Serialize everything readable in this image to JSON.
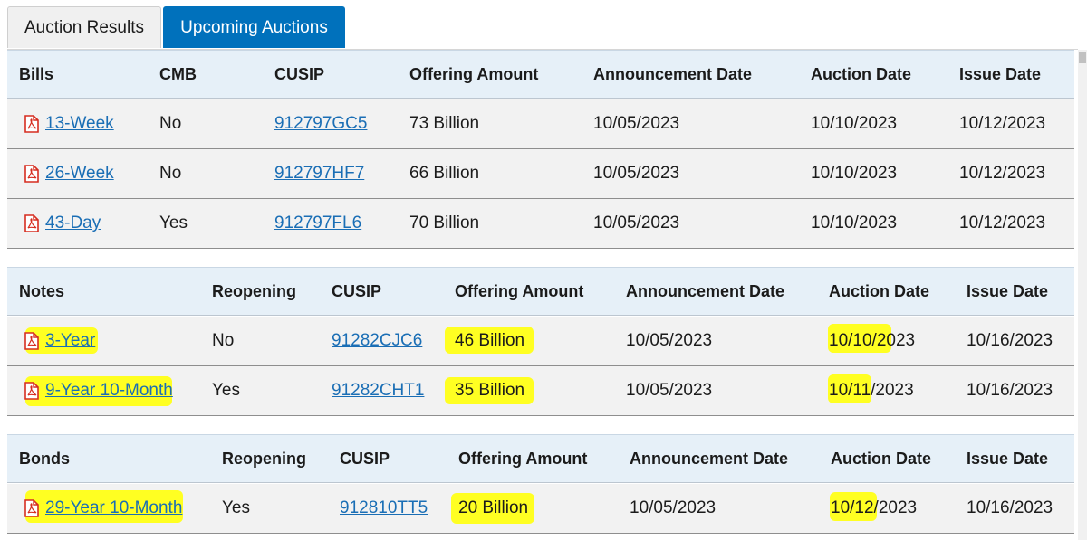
{
  "tabs": [
    "Auction Results",
    "Upcoming Auctions"
  ],
  "active_tab": "Upcoming Auctions",
  "bills": {
    "headers": [
      "Bills",
      "CMB",
      "CUSIP",
      "Offering Amount",
      "Announcement Date",
      "Auction Date",
      "Issue Date"
    ],
    "rows": [
      {
        "term": "13-Week",
        "flag": "No",
        "cusip": "912797GC5",
        "amount": "73 Billion",
        "announce": "10/05/2023",
        "auction": "10/10/2023",
        "issue": "10/12/2023"
      },
      {
        "term": "26-Week",
        "flag": "No",
        "cusip": "912797HF7",
        "amount": "66 Billion",
        "announce": "10/05/2023",
        "auction": "10/10/2023",
        "issue": "10/12/2023"
      },
      {
        "term": "43-Day",
        "flag": "Yes",
        "cusip": "912797FL6",
        "amount": "70 Billion",
        "announce": "10/05/2023",
        "auction": "10/10/2023",
        "issue": "10/12/2023"
      }
    ]
  },
  "notes": {
    "headers": [
      "Notes",
      "Reopening",
      "CUSIP",
      "Offering Amount",
      "Announcement Date",
      "Auction Date",
      "Issue Date"
    ],
    "rows": [
      {
        "term": "3-Year",
        "flag": "No",
        "cusip": "91282CJC6",
        "amount": "46 Billion",
        "announce": "10/05/2023",
        "auction": "10/10/2023",
        "issue": "10/16/2023"
      },
      {
        "term": "9-Year 10-Month",
        "flag": "Yes",
        "cusip": "91282CHT1",
        "amount": "35 Billion",
        "announce": "10/05/2023",
        "auction": "10/11/2023",
        "issue": "10/16/2023"
      }
    ]
  },
  "bonds": {
    "headers": [
      "Bonds",
      "Reopening",
      "CUSIP",
      "Offering Amount",
      "Announcement Date",
      "Auction Date",
      "Issue Date"
    ],
    "rows": [
      {
        "term": "29-Year 10-Month",
        "flag": "Yes",
        "cusip": "912810TT5",
        "amount": "20 Billion",
        "announce": "10/05/2023",
        "auction": "10/12/2023",
        "issue": "10/16/2023"
      }
    ]
  },
  "colors": {
    "tab_active": "#0071bc",
    "link": "#1a6eb5",
    "header_bg": "#e6f0f8",
    "row_bg": "#f2f2f2",
    "pdf_icon": "#d62d20",
    "highlight": "#ffff22"
  }
}
